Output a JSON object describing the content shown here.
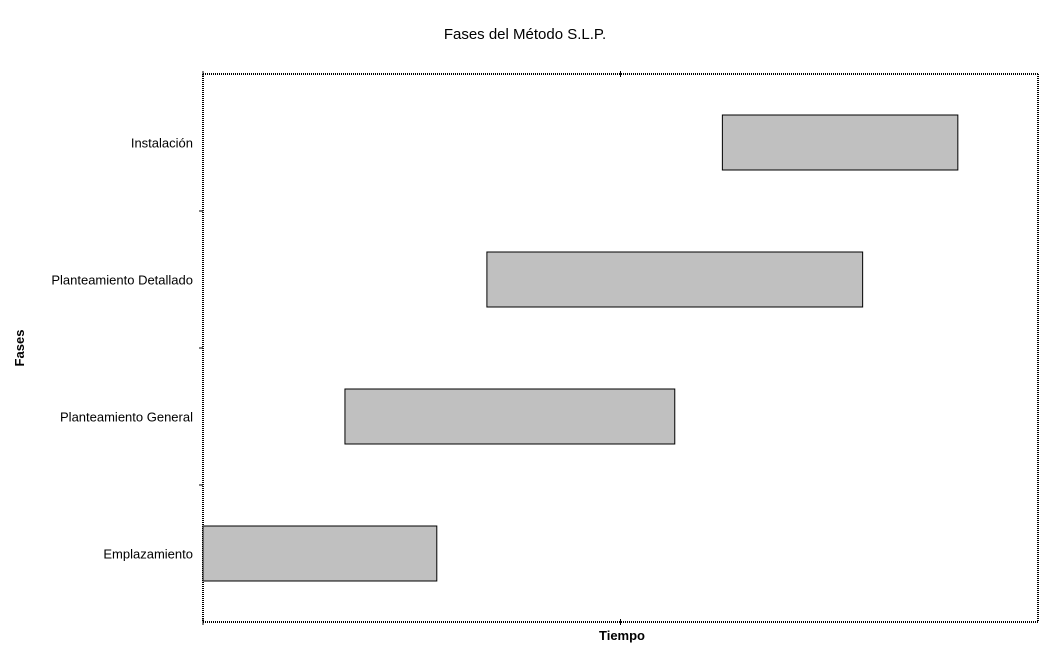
{
  "chart_data": {
    "type": "bar",
    "orientation": "horizontal",
    "title": "Fases del Método S.L.P.",
    "xlabel": "Tiempo",
    "ylabel": "Fases",
    "categories": [
      "Emplazamiento",
      "Planteamiento General",
      "Planteamiento Detallado",
      "Instalación"
    ],
    "tasks": [
      {
        "name": "Emplazamiento",
        "start": 0.0,
        "end": 2.8
      },
      {
        "name": "Planteamiento General",
        "start": 1.7,
        "end": 5.65
      },
      {
        "name": "Planteamiento Detallado",
        "start": 3.4,
        "end": 7.9
      },
      {
        "name": "Instalación",
        "start": 6.22,
        "end": 9.04
      }
    ],
    "xlim": [
      0,
      10
    ],
    "grid": false,
    "legend": "none"
  }
}
